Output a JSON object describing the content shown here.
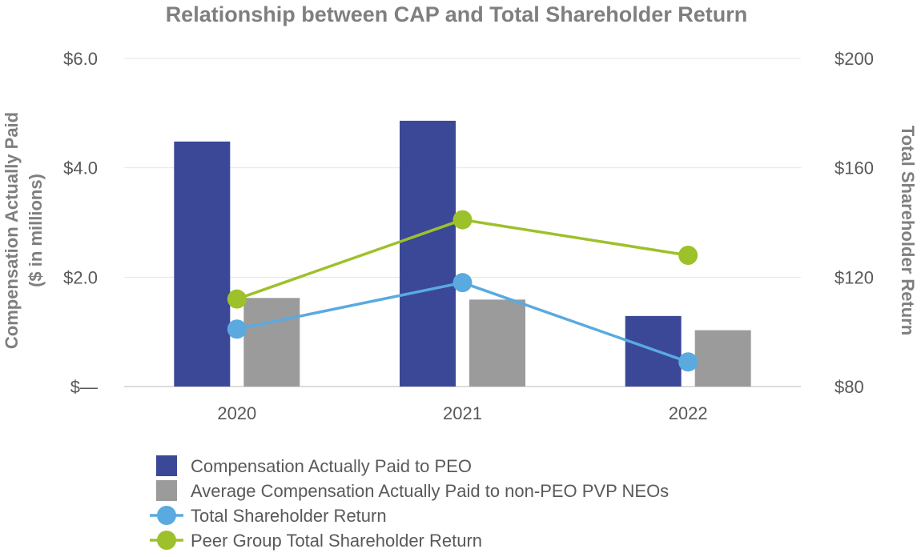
{
  "chart_data": {
    "type": "bar",
    "title": "Relationship between CAP and Total Shareholder Return",
    "categories": [
      "2020",
      "2021",
      "2022"
    ],
    "ylabel_left": [
      "Compensation Actually Paid",
      "($ in millions)"
    ],
    "ylabel_right": "Total Shareholder Return",
    "ylim_left": [
      0,
      6
    ],
    "ylim_right": [
      80,
      200
    ],
    "yticks_left": [
      {
        "value": 0,
        "label": "$—"
      },
      {
        "value": 2,
        "label": "$2.0"
      },
      {
        "value": 4,
        "label": "$4.0"
      },
      {
        "value": 6,
        "label": "$6.0"
      }
    ],
    "yticks_right": [
      {
        "value": 80,
        "label": "$80"
      },
      {
        "value": 120,
        "label": "$120"
      },
      {
        "value": 160,
        "label": "$160"
      },
      {
        "value": 200,
        "label": "$200"
      }
    ],
    "grid": true,
    "legend_position": "bottom",
    "bar_series": [
      {
        "name": "Compensation Actually Paid to PEO",
        "color": "#3b4898",
        "values": [
          4.48,
          4.86,
          1.29
        ]
      },
      {
        "name": "Average Compensation Actually Paid to non-PEO PVP NEOs",
        "color": "#9b9b9b",
        "values": [
          1.62,
          1.59,
          1.03
        ]
      }
    ],
    "line_series": [
      {
        "name": "Total Shareholder Return",
        "color": "#5aaadf",
        "axis": "right",
        "values": [
          101,
          118,
          89
        ]
      },
      {
        "name": "Peer Group Total Shareholder Return",
        "color": "#9dc12a",
        "axis": "right",
        "values": [
          112,
          141,
          128
        ]
      }
    ]
  }
}
